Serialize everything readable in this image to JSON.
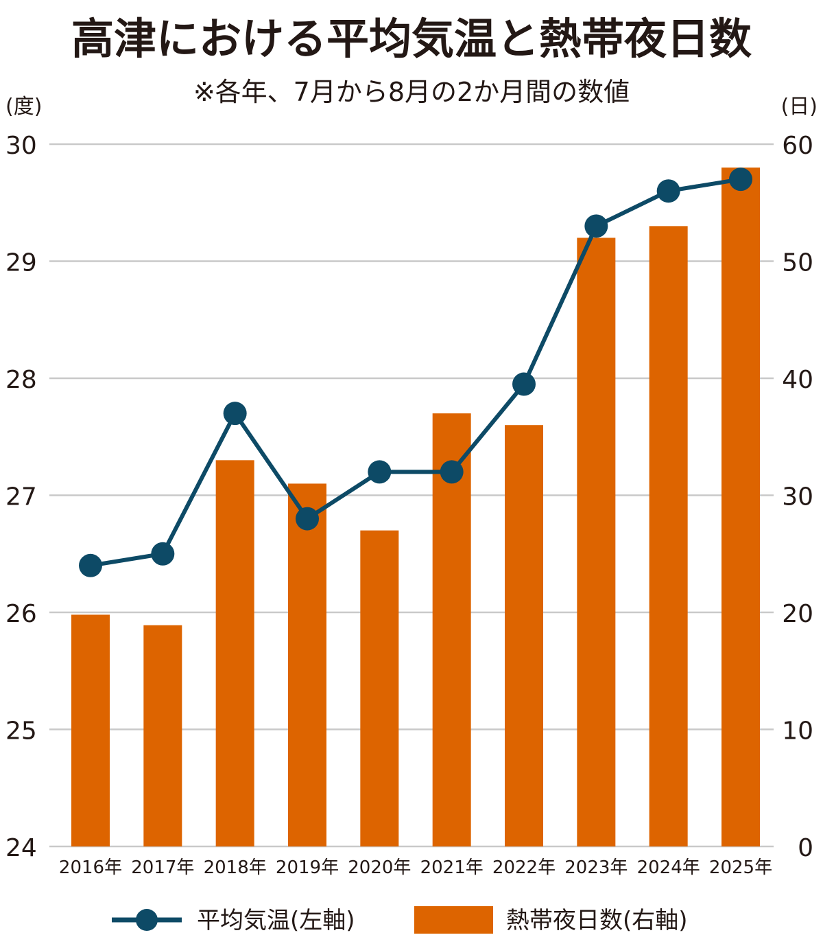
{
  "chart_data": {
    "type": "bar+line",
    "title": "高津における平均気温と熱帯夜日数",
    "subtitle": "※各年、7月から8月の2か月間の数値",
    "left_axis": {
      "unit": "(度)",
      "ylim": [
        24,
        30
      ],
      "ticks": [
        "24",
        "25",
        "26",
        "27",
        "28",
        "29",
        "30"
      ]
    },
    "right_axis": {
      "unit": "(日)",
      "ylim": [
        0,
        60
      ],
      "ticks": [
        "0",
        "10",
        "20",
        "30",
        "40",
        "50",
        "60"
      ]
    },
    "categories": [
      "2016年",
      "2017年",
      "2018年",
      "2019年",
      "2020年",
      "2021年",
      "2022年",
      "2023年",
      "2024年",
      "2025年"
    ],
    "series": [
      {
        "name": "平均気温(左軸)",
        "type": "line",
        "axis": "left",
        "color": "#0d4a66",
        "values": [
          26.4,
          26.5,
          27.7,
          26.8,
          27.2,
          27.2,
          27.95,
          29.3,
          29.6,
          29.7
        ]
      },
      {
        "name": "熱帯夜日数(右軸)",
        "type": "bar",
        "axis": "right",
        "color": "#dd6400",
        "values": [
          19.8,
          18.9,
          33,
          31,
          27,
          37,
          36,
          52,
          53,
          58
        ]
      }
    ],
    "gridlines": true,
    "legend_position": "bottom"
  }
}
